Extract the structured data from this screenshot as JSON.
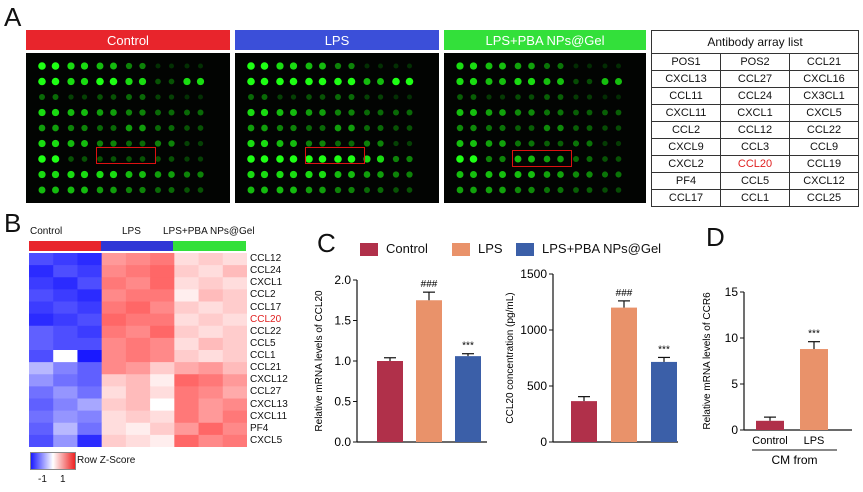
{
  "panel_labels": {
    "a": "A",
    "b": "B",
    "c": "C",
    "d": "D"
  },
  "panelA": {
    "groups": [
      {
        "name": "Control",
        "color": "#e8252c"
      },
      {
        "name": "LPS",
        "color": "#3b4fd9"
      },
      {
        "name": "LPS+PBA NPs@Gel",
        "color": "#33e03a"
      }
    ],
    "table_title": "Antibody array list",
    "table_rows": [
      [
        "POS1",
        "POS2",
        "CCL21"
      ],
      [
        "CXCL13",
        "CCL27",
        "CXCL16"
      ],
      [
        "CCL11",
        "CCL24",
        "CX3CL1"
      ],
      [
        "CXCL11",
        "CXCL1",
        "CXCL5"
      ],
      [
        "CCL2",
        "CCL12",
        "CCL22"
      ],
      [
        "CXCL9",
        "CCL3",
        "CCL9"
      ],
      [
        "CXCL2",
        "CCL20",
        "CCL19"
      ],
      [
        "PF4",
        "CCL5",
        "CXCL12"
      ],
      [
        "CCL17",
        "CCL1",
        "CCL25"
      ]
    ],
    "highlight_color": "#e02020"
  },
  "panelB": {
    "groups": [
      {
        "name": "Control",
        "color": "#e8252c"
      },
      {
        "name": "LPS",
        "color": "#2f37d6"
      },
      {
        "name": "LPS+PBA NPs@Gel",
        "color": "#33e03a"
      }
    ],
    "rows": [
      "CCL12",
      "CCL24",
      "CXCL1",
      "CCL2",
      "CCL17",
      "CCL20",
      "CCL22",
      "CCL5",
      "CCL1",
      "CCL21",
      "CXCL12",
      "CCL27",
      "CXCL13",
      "CXCL11",
      "PF4",
      "CXCL5"
    ],
    "highlight_row": "CCL20",
    "legend_title": "Row Z-Score",
    "legend_ticks": [
      "-1",
      "1"
    ]
  },
  "panelC": {
    "legend": [
      {
        "name": "Control",
        "color": "#b0304a"
      },
      {
        "name": "LPS",
        "color": "#e9926a"
      },
      {
        "name": "LPS+PBA NPs@Gel",
        "color": "#3b5fa8"
      }
    ]
  },
  "chart_data": [
    {
      "type": "bar",
      "panel": "C-left",
      "categories": [
        "Control",
        "LPS",
        "LPS+PBA NPs@Gel"
      ],
      "values": [
        1.0,
        1.75,
        1.06
      ],
      "errors": [
        0.04,
        0.1,
        0.03
      ],
      "significance": [
        "",
        "###",
        "***"
      ],
      "ylabel": "Relative mRNA levels of CCL20",
      "ylim": [
        0,
        2.0
      ],
      "yticks": [
        "0.0",
        "0.5",
        "1.0",
        "1.5",
        "2.0"
      ]
    },
    {
      "type": "bar",
      "panel": "C-right",
      "categories": [
        "Control",
        "LPS",
        "LPS+PBA NPs@Gel"
      ],
      "values": [
        365,
        1200,
        715
      ],
      "errors": [
        40,
        60,
        40
      ],
      "significance": [
        "",
        "###",
        "***"
      ],
      "ylabel": "CCL20 concentration (pg/mL)",
      "ylim": [
        0,
        1500
      ],
      "yticks": [
        "0",
        "500",
        "1000",
        "1500"
      ]
    },
    {
      "type": "bar",
      "panel": "D",
      "categories": [
        "Control",
        "LPS"
      ],
      "values": [
        1.0,
        8.8
      ],
      "errors": [
        0.4,
        0.8
      ],
      "significance": [
        "",
        "***"
      ],
      "ylabel": "Relative mRNA levels of CCR6",
      "xlabel": "CM from",
      "ylim": [
        0,
        15
      ],
      "yticks": [
        "0",
        "5",
        "10",
        "15"
      ],
      "colors": [
        "#b0304a",
        "#e9926a"
      ]
    }
  ]
}
